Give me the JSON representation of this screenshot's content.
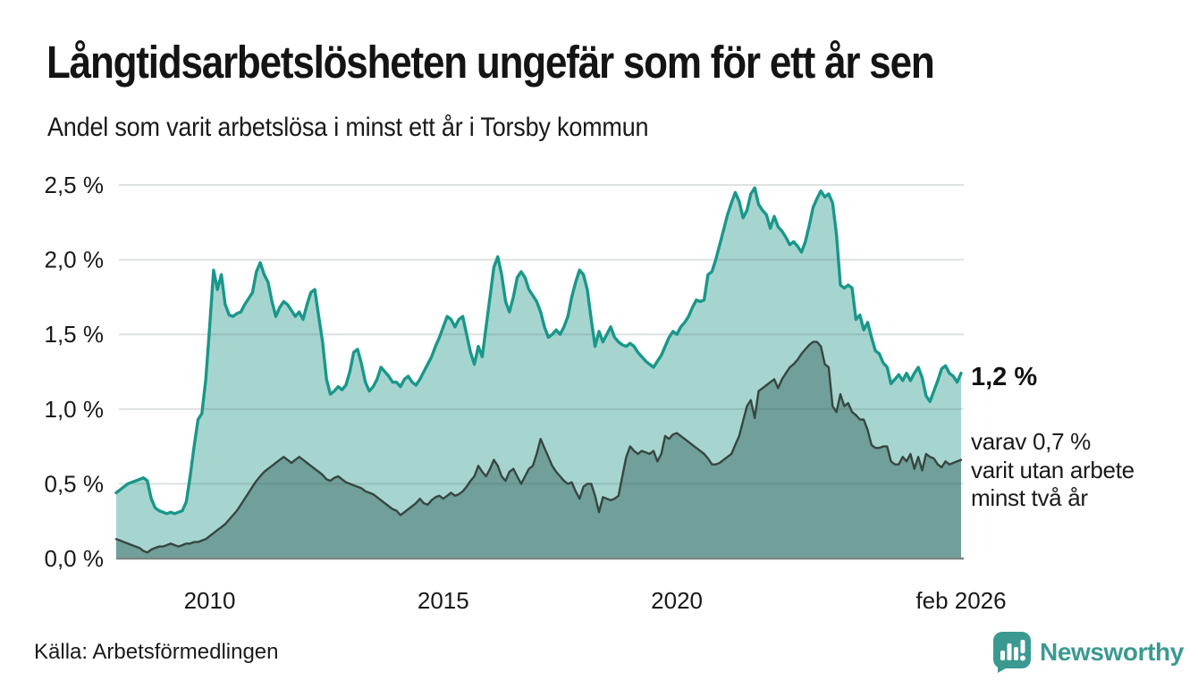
{
  "header": {
    "title": "Långtidsarbetslösheten ungefär som för ett år sen",
    "subtitle": "Andel som varit arbetslösa i minst ett år i Torsby kommun"
  },
  "annotations": {
    "latest_value": "1,2 %",
    "breakdown": "varav 0,7 %\nvarit utan arbete\nminst två år"
  },
  "source": "Källa: Arbetsförmedlingen",
  "brand": {
    "name": "Newsworthy",
    "color": "#3a9a91"
  },
  "chart_data": {
    "type": "area",
    "title": "Långtidsarbetslösheten ungefär som för ett år sen",
    "subtitle": "Andel som varit arbetslösa i minst ett år i Torsby kommun",
    "x_unit": "month",
    "x_range": [
      "2008-01",
      "2026-02"
    ],
    "ylim": [
      0,
      2.5
    ],
    "grid": true,
    "legend_position": "right-annotations",
    "y_ticks": [
      {
        "value": 0.0,
        "label": "0,0 %"
      },
      {
        "value": 0.5,
        "label": "0,5 %"
      },
      {
        "value": 1.0,
        "label": "1,0 %"
      },
      {
        "value": 1.5,
        "label": "1,5 %"
      },
      {
        "value": 2.0,
        "label": "2,0 %"
      },
      {
        "value": 2.5,
        "label": "2,5 %"
      }
    ],
    "x_ticks": [
      {
        "label": "2010",
        "month_index": 24
      },
      {
        "label": "2015",
        "month_index": 84
      },
      {
        "label": "2020",
        "month_index": 144
      },
      {
        "label": "feb 2026",
        "month_index": 217
      }
    ],
    "series": [
      {
        "name": "minst ett år",
        "color": "#19978a",
        "fill": "#a6d5cf",
        "line_width": 3.4,
        "end_label": "1,2 %",
        "values": [
          0.44,
          0.46,
          0.48,
          0.5,
          0.51,
          0.52,
          0.53,
          0.54,
          0.52,
          0.4,
          0.34,
          0.32,
          0.31,
          0.3,
          0.31,
          0.3,
          0.31,
          0.32,
          0.38,
          0.55,
          0.75,
          0.93,
          0.97,
          1.2,
          1.55,
          1.93,
          1.8,
          1.9,
          1.7,
          1.63,
          1.62,
          1.64,
          1.65,
          1.7,
          1.74,
          1.78,
          1.92,
          1.98,
          1.9,
          1.85,
          1.72,
          1.62,
          1.68,
          1.72,
          1.7,
          1.66,
          1.62,
          1.65,
          1.6,
          1.7,
          1.78,
          1.8,
          1.62,
          1.45,
          1.2,
          1.1,
          1.12,
          1.15,
          1.13,
          1.16,
          1.25,
          1.38,
          1.4,
          1.3,
          1.18,
          1.12,
          1.15,
          1.2,
          1.28,
          1.25,
          1.22,
          1.18,
          1.18,
          1.15,
          1.2,
          1.22,
          1.18,
          1.16,
          1.2,
          1.25,
          1.3,
          1.35,
          1.42,
          1.48,
          1.55,
          1.62,
          1.6,
          1.55,
          1.6,
          1.62,
          1.5,
          1.38,
          1.3,
          1.42,
          1.35,
          1.55,
          1.75,
          1.95,
          2.02,
          1.9,
          1.72,
          1.65,
          1.75,
          1.88,
          1.92,
          1.88,
          1.8,
          1.76,
          1.72,
          1.65,
          1.55,
          1.48,
          1.5,
          1.53,
          1.5,
          1.55,
          1.62,
          1.75,
          1.85,
          1.93,
          1.9,
          1.8,
          1.6,
          1.42,
          1.52,
          1.45,
          1.5,
          1.55,
          1.48,
          1.45,
          1.43,
          1.42,
          1.44,
          1.42,
          1.38,
          1.35,
          1.32,
          1.3,
          1.28,
          1.32,
          1.36,
          1.42,
          1.48,
          1.52,
          1.5,
          1.55,
          1.58,
          1.62,
          1.68,
          1.73,
          1.72,
          1.73,
          1.9,
          1.92,
          2.0,
          2.1,
          2.2,
          2.3,
          2.38,
          2.45,
          2.39,
          2.28,
          2.33,
          2.44,
          2.48,
          2.37,
          2.33,
          2.3,
          2.21,
          2.29,
          2.22,
          2.19,
          2.15,
          2.1,
          2.12,
          2.09,
          2.05,
          2.12,
          2.23,
          2.35,
          2.41,
          2.46,
          2.42,
          2.44,
          2.38,
          2.17,
          1.83,
          1.81,
          1.83,
          1.81,
          1.6,
          1.63,
          1.53,
          1.58,
          1.48,
          1.39,
          1.37,
          1.31,
          1.28,
          1.17,
          1.2,
          1.23,
          1.19,
          1.24,
          1.19,
          1.24,
          1.28,
          1.21,
          1.09,
          1.05,
          1.12,
          1.19,
          1.27,
          1.29,
          1.24,
          1.22,
          1.18,
          1.24
        ]
      },
      {
        "name": "minst två år",
        "color": "#374642",
        "fill": "#70a099",
        "line_width": 2.4,
        "end_label": "varav 0,7 % varit utan arbete minst två år",
        "values": [
          0.13,
          0.12,
          0.11,
          0.1,
          0.09,
          0.08,
          0.07,
          0.05,
          0.04,
          0.06,
          0.07,
          0.08,
          0.08,
          0.09,
          0.1,
          0.09,
          0.08,
          0.09,
          0.1,
          0.1,
          0.11,
          0.11,
          0.12,
          0.13,
          0.15,
          0.17,
          0.19,
          0.21,
          0.23,
          0.26,
          0.29,
          0.32,
          0.36,
          0.4,
          0.44,
          0.48,
          0.52,
          0.55,
          0.58,
          0.6,
          0.62,
          0.64,
          0.66,
          0.68,
          0.66,
          0.64,
          0.66,
          0.68,
          0.66,
          0.64,
          0.62,
          0.6,
          0.58,
          0.56,
          0.53,
          0.52,
          0.54,
          0.55,
          0.53,
          0.51,
          0.5,
          0.49,
          0.48,
          0.47,
          0.45,
          0.44,
          0.43,
          0.41,
          0.39,
          0.37,
          0.35,
          0.33,
          0.32,
          0.29,
          0.31,
          0.33,
          0.35,
          0.37,
          0.4,
          0.37,
          0.36,
          0.39,
          0.41,
          0.42,
          0.4,
          0.42,
          0.44,
          0.42,
          0.43,
          0.45,
          0.48,
          0.52,
          0.55,
          0.62,
          0.58,
          0.55,
          0.6,
          0.66,
          0.62,
          0.55,
          0.52,
          0.58,
          0.6,
          0.55,
          0.5,
          0.55,
          0.6,
          0.62,
          0.7,
          0.8,
          0.74,
          0.68,
          0.62,
          0.58,
          0.55,
          0.52,
          0.5,
          0.51,
          0.45,
          0.4,
          0.48,
          0.5,
          0.5,
          0.42,
          0.31,
          0.41,
          0.4,
          0.39,
          0.4,
          0.42,
          0.55,
          0.68,
          0.75,
          0.72,
          0.7,
          0.72,
          0.71,
          0.7,
          0.72,
          0.65,
          0.7,
          0.82,
          0.8,
          0.83,
          0.84,
          0.82,
          0.8,
          0.78,
          0.76,
          0.74,
          0.72,
          0.7,
          0.67,
          0.63,
          0.63,
          0.64,
          0.66,
          0.68,
          0.7,
          0.76,
          0.82,
          0.92,
          1.02,
          1.06,
          0.94,
          1.12,
          1.14,
          1.16,
          1.18,
          1.2,
          1.14,
          1.2,
          1.24,
          1.28,
          1.3,
          1.33,
          1.37,
          1.4,
          1.43,
          1.45,
          1.45,
          1.42,
          1.3,
          1.28,
          1.02,
          0.98,
          1.1,
          1.02,
          1.04,
          0.98,
          0.96,
          0.93,
          0.93,
          0.86,
          0.76,
          0.74,
          0.74,
          0.75,
          0.75,
          0.65,
          0.63,
          0.63,
          0.68,
          0.65,
          0.7,
          0.6,
          0.68,
          0.59,
          0.7,
          0.68,
          0.67,
          0.63,
          0.61,
          0.65,
          0.63,
          0.64,
          0.65,
          0.66
        ]
      }
    ]
  }
}
